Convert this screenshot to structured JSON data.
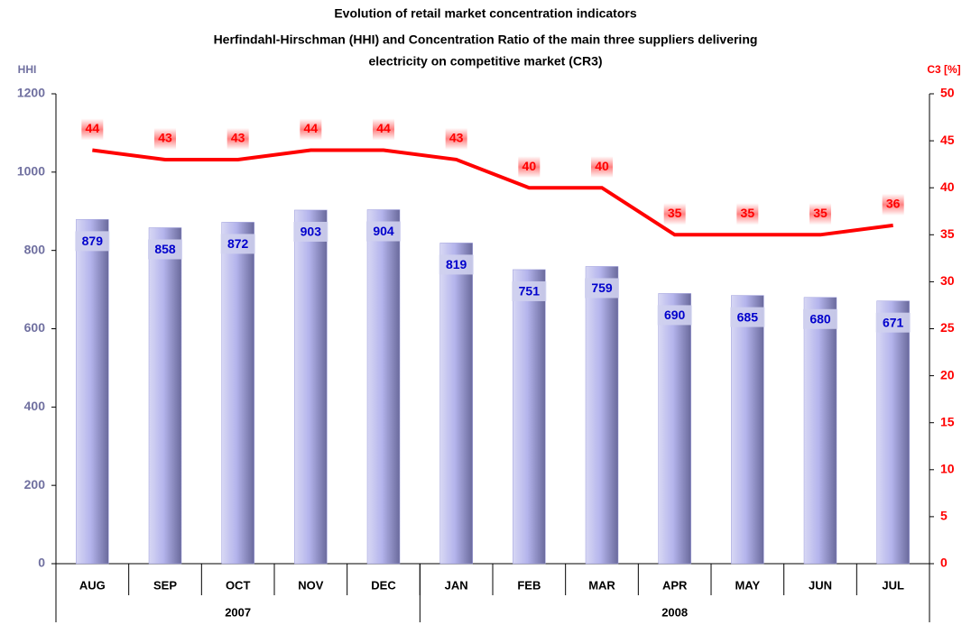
{
  "chart_data": {
    "type": "bar-line",
    "title": [
      "Evolution of retail market concentration indicators",
      "Herfindahl-Hirschman (HHI) and Concentration Ratio of the main three suppliers delivering",
      "electricity on competitive market (CR3)"
    ],
    "y_label": "HHI",
    "y2_label": "C3 [%]",
    "categories": [
      "AUG",
      "SEP",
      "OCT",
      "NOV",
      "DEC",
      "JAN",
      "FEB",
      "MAR",
      "APR",
      "MAY",
      "JUN",
      "JUL"
    ],
    "groups": [
      {
        "label": "2007",
        "count": 5
      },
      {
        "label": "2008",
        "count": 7
      }
    ],
    "series": [
      {
        "name": "HHI",
        "kind": "bar",
        "color": "#9b9bdc",
        "label_color": "#0000cc",
        "values": [
          879,
          858,
          872,
          903,
          904,
          819,
          751,
          759,
          690,
          685,
          680,
          671
        ]
      },
      {
        "name": "C3",
        "kind": "line",
        "axis": "y2",
        "color": "#ff0000",
        "values": [
          44,
          43,
          43,
          44,
          44,
          43,
          40,
          40,
          35,
          35,
          35,
          36
        ]
      }
    ],
    "ylim": [
      0,
      1200
    ],
    "yticks": [
      0,
      200,
      400,
      600,
      800,
      1000,
      1200
    ],
    "y2lim": [
      0,
      50
    ],
    "y2ticks": [
      0,
      5,
      10,
      15,
      20,
      25,
      30,
      35,
      40,
      45,
      50
    ]
  }
}
